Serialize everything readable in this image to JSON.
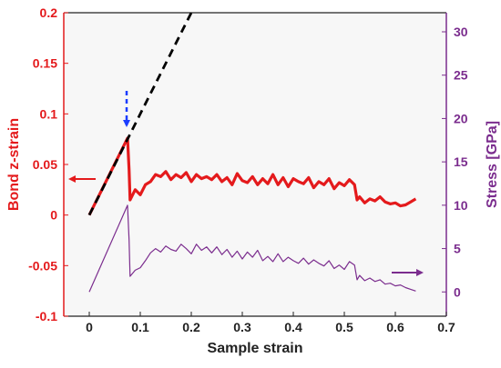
{
  "chart_data": {
    "type": "line",
    "xlabel": "Sample strain",
    "ylabel_left": "Bond z-strain",
    "ylabel_right": "Stress [GPa]",
    "xlim": [
      -0.05,
      0.7
    ],
    "ylim_left": [
      -0.1,
      0.2
    ],
    "ylim_right": [
      -2.8,
      32.2
    ],
    "x_ticks": [
      "0",
      "0.1",
      "0.2",
      "0.3",
      "0.4",
      "0.5",
      "0.6",
      "0.7"
    ],
    "y_left_ticks": [
      "-0.1",
      "-0.05",
      "0",
      "0.05",
      "0.1",
      "0.15",
      "0.2"
    ],
    "y_right_ticks": [
      "0",
      "5",
      "10",
      "15",
      "20",
      "25",
      "30"
    ],
    "grid": false,
    "colors": {
      "left_axis": "#e41a1c",
      "right_axis": "#7b2d8e",
      "linear_fit": "#000000",
      "marker_arrow": "#1a3cff",
      "plot_background": "#f7f7f7"
    },
    "series": [
      {
        "axis": "left",
        "x": [
          0.0,
          0.075,
          0.078,
          0.08,
          0.09,
          0.1,
          0.11,
          0.12,
          0.13,
          0.14,
          0.15,
          0.16,
          0.17,
          0.18,
          0.19,
          0.2,
          0.21,
          0.22,
          0.23,
          0.24,
          0.25,
          0.26,
          0.27,
          0.28,
          0.29,
          0.3,
          0.31,
          0.32,
          0.33,
          0.34,
          0.35,
          0.36,
          0.37,
          0.38,
          0.39,
          0.4,
          0.41,
          0.42,
          0.43,
          0.44,
          0.45,
          0.46,
          0.47,
          0.48,
          0.49,
          0.5,
          0.51,
          0.52,
          0.525,
          0.53,
          0.54,
          0.55,
          0.56,
          0.57,
          0.58,
          0.59,
          0.6,
          0.61,
          0.62,
          0.63,
          0.64
        ],
        "y": [
          0.0,
          0.076,
          0.045,
          0.015,
          0.025,
          0.02,
          0.03,
          0.033,
          0.04,
          0.038,
          0.043,
          0.035,
          0.04,
          0.037,
          0.042,
          0.033,
          0.04,
          0.036,
          0.038,
          0.035,
          0.04,
          0.033,
          0.037,
          0.03,
          0.041,
          0.034,
          0.032,
          0.038,
          0.03,
          0.036,
          0.031,
          0.04,
          0.03,
          0.037,
          0.028,
          0.036,
          0.033,
          0.031,
          0.037,
          0.027,
          0.033,
          0.03,
          0.036,
          0.026,
          0.032,
          0.029,
          0.035,
          0.03,
          0.015,
          0.018,
          0.012,
          0.016,
          0.014,
          0.018,
          0.013,
          0.011,
          0.012,
          0.009,
          0.01,
          0.013,
          0.016
        ]
      },
      {
        "axis": "right",
        "x": [
          0.0,
          0.075,
          0.078,
          0.08,
          0.09,
          0.1,
          0.11,
          0.12,
          0.13,
          0.14,
          0.15,
          0.16,
          0.17,
          0.18,
          0.19,
          0.2,
          0.21,
          0.22,
          0.23,
          0.24,
          0.25,
          0.26,
          0.27,
          0.28,
          0.29,
          0.3,
          0.31,
          0.32,
          0.33,
          0.34,
          0.35,
          0.36,
          0.37,
          0.38,
          0.39,
          0.4,
          0.41,
          0.42,
          0.43,
          0.44,
          0.45,
          0.46,
          0.47,
          0.48,
          0.49,
          0.5,
          0.51,
          0.52,
          0.525,
          0.53,
          0.54,
          0.55,
          0.56,
          0.57,
          0.58,
          0.59,
          0.6,
          0.61,
          0.62,
          0.63,
          0.64
        ],
        "y": [
          0.0,
          10.0,
          6.0,
          1.8,
          2.5,
          2.8,
          3.6,
          4.5,
          5.0,
          4.6,
          5.3,
          4.9,
          4.7,
          5.5,
          5.0,
          4.4,
          5.5,
          4.8,
          5.2,
          4.5,
          5.2,
          4.3,
          4.9,
          4.0,
          4.7,
          3.8,
          4.6,
          4.0,
          4.8,
          3.6,
          4.1,
          3.5,
          4.4,
          3.5,
          4.0,
          3.6,
          3.3,
          3.9,
          3.2,
          3.7,
          3.3,
          3.0,
          3.6,
          2.7,
          3.1,
          2.6,
          3.5,
          3.1,
          1.4,
          1.9,
          1.3,
          1.6,
          1.2,
          1.4,
          0.9,
          1.0,
          0.7,
          0.8,
          0.5,
          0.3,
          0.1
        ]
      },
      {
        "axis": "left",
        "style": "dashed",
        "x": [
          0.0,
          0.2
        ],
        "y": [
          0.0,
          0.2
        ]
      }
    ]
  }
}
